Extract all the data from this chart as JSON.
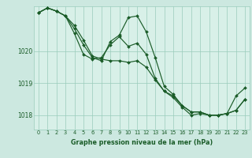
{
  "background_color": "#cce8e0",
  "plot_bg_color": "#d8f0e8",
  "grid_color": "#99ccbb",
  "line_color": "#1a5c28",
  "marker_color": "#1a5c28",
  "xlabel": "Graphe pression niveau de la mer (hPa)",
  "ylim": [
    1017.55,
    1021.4
  ],
  "xlim": [
    -0.5,
    23.5
  ],
  "yticks": [
    1018,
    1019,
    1020
  ],
  "xticks": [
    0,
    1,
    2,
    3,
    4,
    5,
    6,
    7,
    8,
    9,
    10,
    11,
    12,
    13,
    14,
    15,
    16,
    17,
    18,
    19,
    20,
    21,
    22,
    23
  ],
  "series1": [
    1021.2,
    1021.35,
    1021.25,
    1021.1,
    1020.8,
    1020.35,
    1019.85,
    1019.75,
    1019.7,
    1019.7,
    1019.65,
    1019.7,
    1019.5,
    1019.1,
    1018.75,
    1018.55,
    1018.25,
    1018.0,
    1018.05,
    1018.0,
    1018.0,
    1018.05,
    1018.15,
    1018.5
  ],
  "series2": [
    1021.2,
    1021.35,
    1021.25,
    1021.1,
    1020.7,
    1020.2,
    1019.8,
    1019.7,
    1020.3,
    1020.5,
    1021.05,
    1021.1,
    1020.6,
    1019.8,
    1018.9,
    1018.65,
    1018.3,
    1018.1,
    1018.1,
    1018.0,
    1018.0,
    1018.05,
    1018.15,
    1018.5
  ],
  "series3": [
    1021.2,
    1021.35,
    1021.25,
    1021.1,
    1020.55,
    1019.9,
    1019.75,
    1019.8,
    1020.2,
    1020.45,
    1020.15,
    1020.25,
    1019.9,
    1019.15,
    1018.75,
    1018.6,
    1018.3,
    1018.1,
    1018.1,
    1018.0,
    1018.0,
    1018.05,
    1018.6,
    1018.85
  ]
}
